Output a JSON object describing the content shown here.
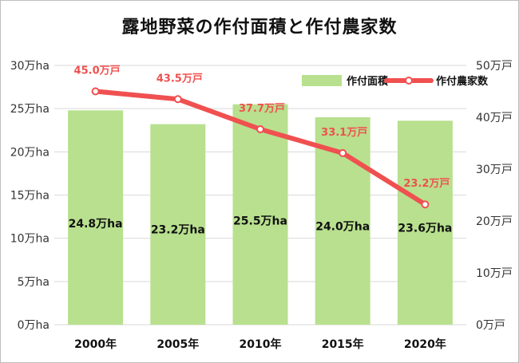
{
  "title": "露地野菜の作付面積と作付農家数",
  "colors": {
    "bar": "#b8e08e",
    "line": "#f05050",
    "grid": "#d9d9d9"
  },
  "chart_data": {
    "type": "bar",
    "title": "露地野菜の作付面積と作付農家数",
    "categories": [
      "2000年",
      "2005年",
      "2010年",
      "2015年",
      "2020年"
    ],
    "series": [
      {
        "name": "作付面積",
        "type": "bar",
        "axis": "left",
        "values": [
          24.8,
          23.2,
          25.5,
          24.0,
          23.6
        ],
        "labels": [
          "24.8万ha",
          "23.2万ha",
          "25.5万ha",
          "24.0万ha",
          "23.6万ha"
        ]
      },
      {
        "name": "作付農家数",
        "type": "line",
        "axis": "right",
        "values": [
          45.0,
          43.5,
          37.7,
          33.1,
          23.2
        ],
        "labels": [
          "45.0万戸",
          "43.5万戸",
          "37.7万戸",
          "33.1万戸",
          "23.2万戸"
        ]
      }
    ],
    "y_left": {
      "ylim": [
        0,
        30
      ],
      "ticks": [
        "0万ha",
        "5万ha",
        "10万ha",
        "15万ha",
        "20万ha",
        "25万ha",
        "30万ha"
      ]
    },
    "y_right": {
      "ylim": [
        0,
        50
      ],
      "ticks": [
        "0万戸",
        "10万戸",
        "20万戸",
        "30万戸",
        "40万戸",
        "50万戸"
      ]
    },
    "grid": true,
    "legend": "top-right"
  }
}
